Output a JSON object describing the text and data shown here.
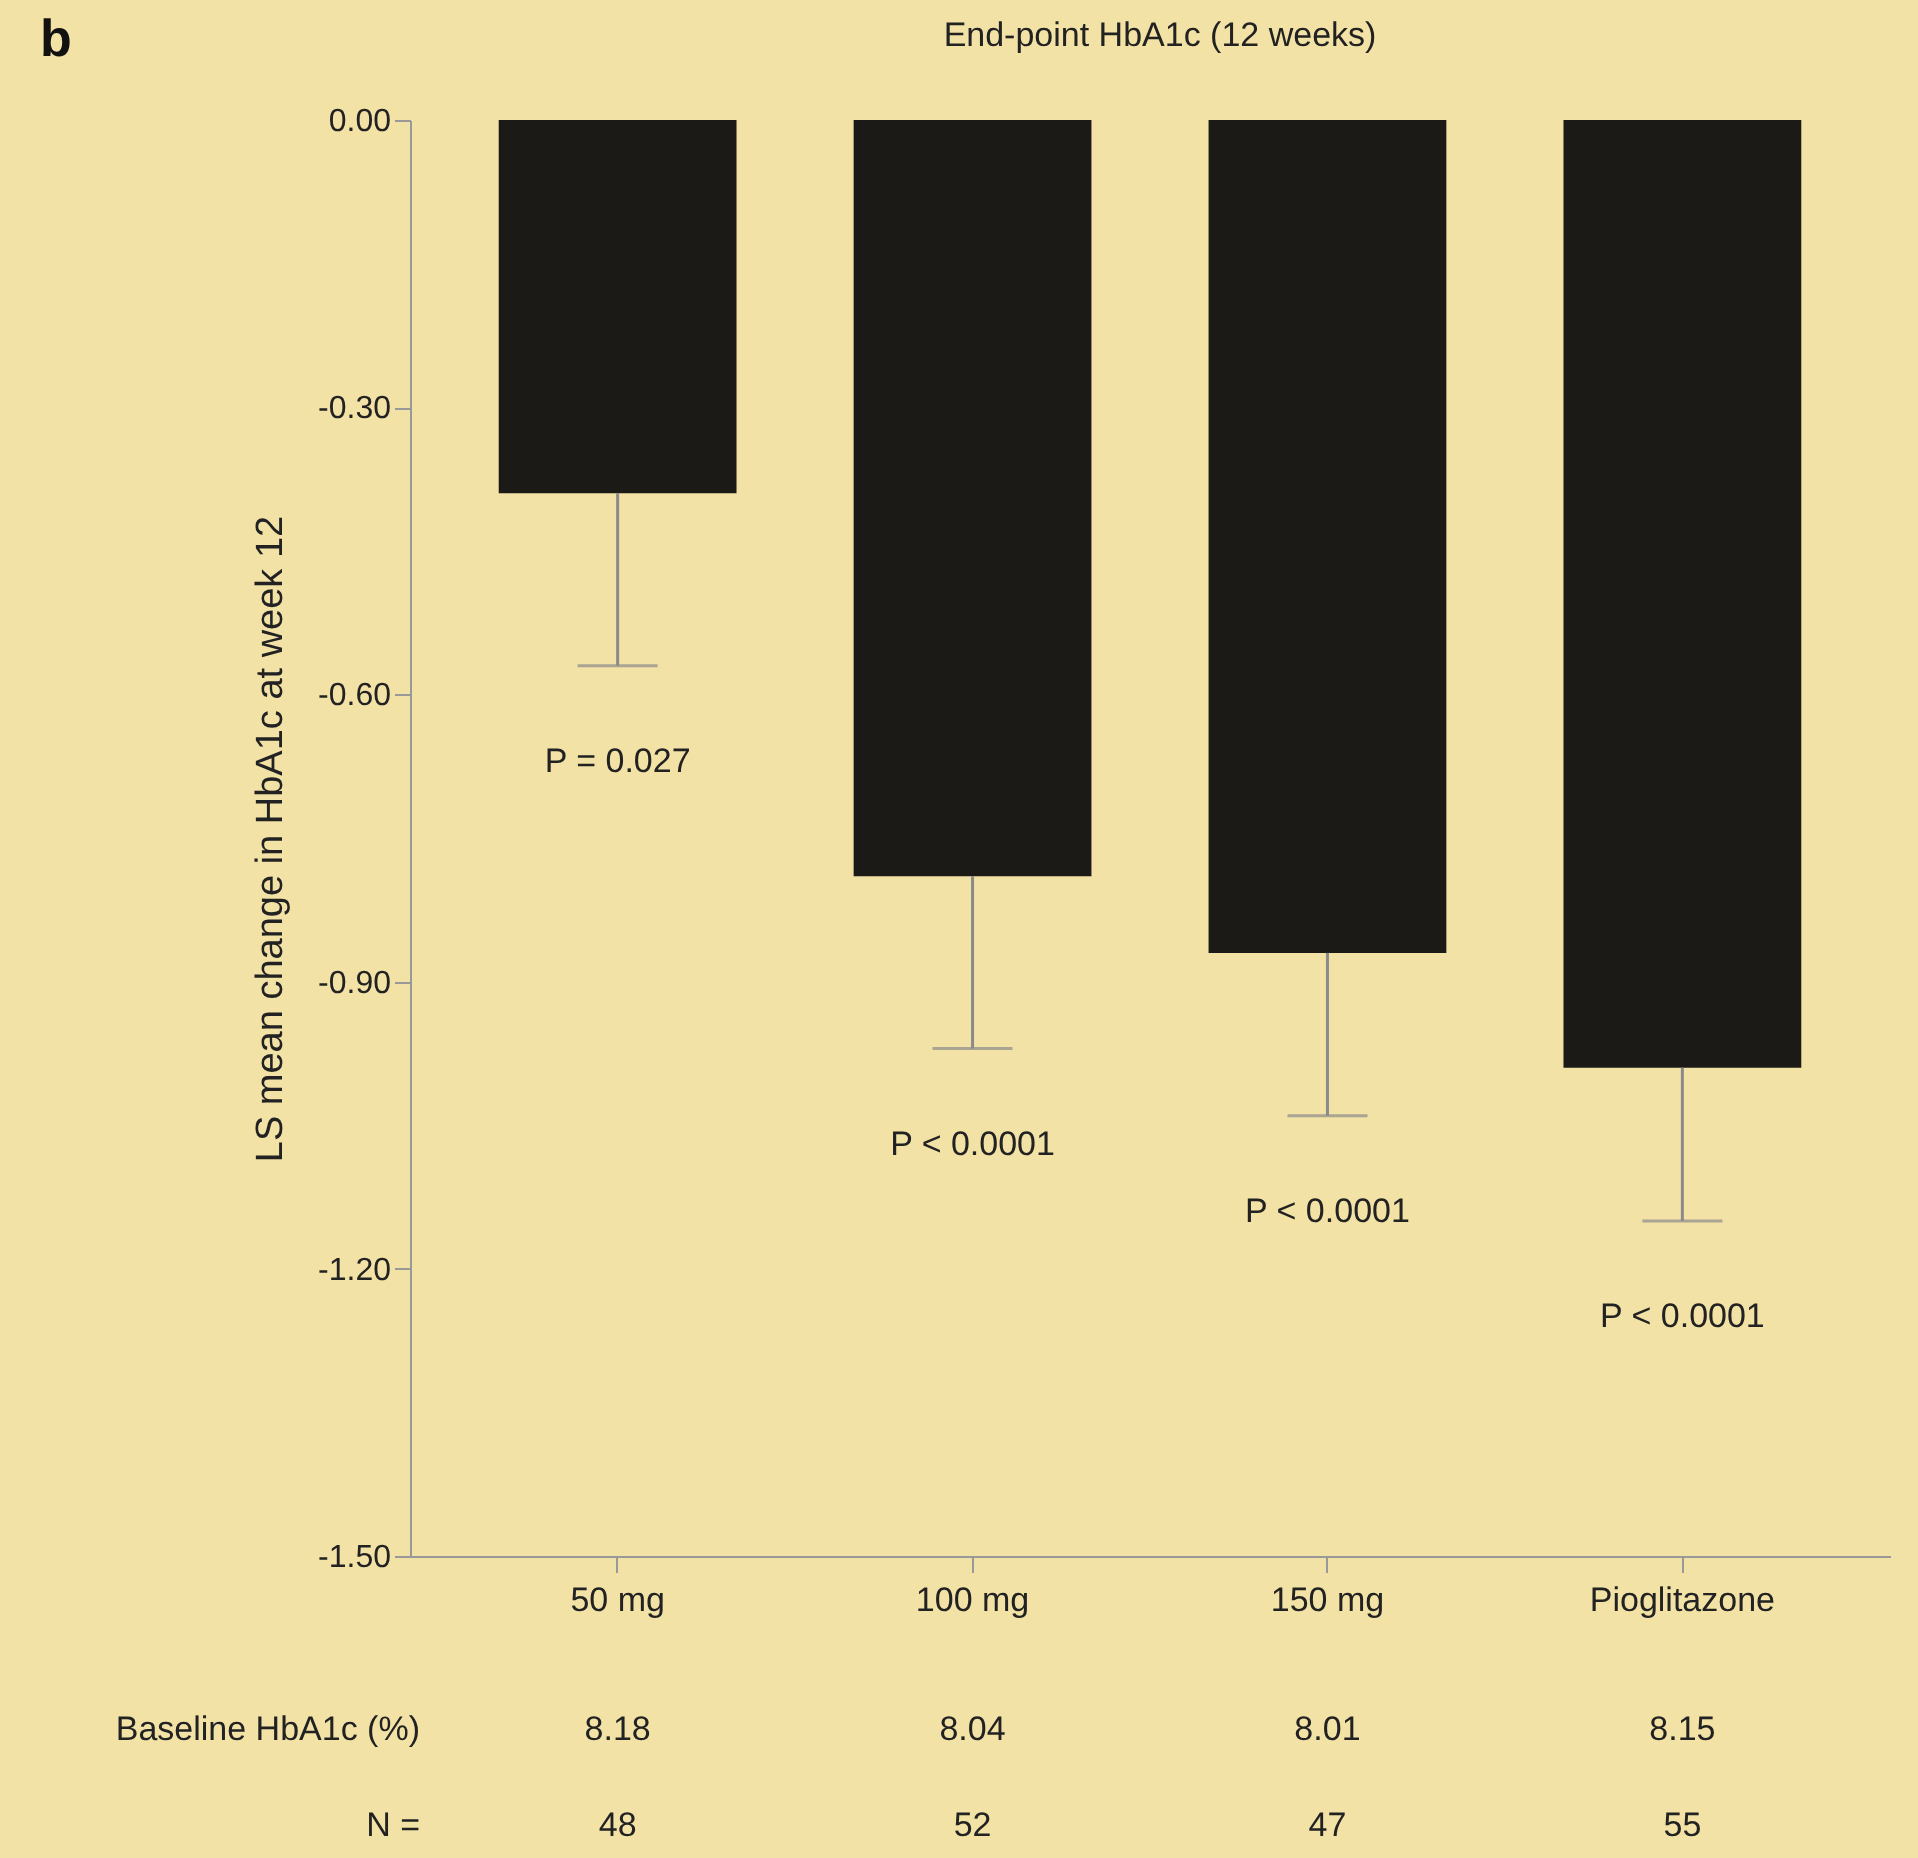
{
  "chart_data": {
    "type": "bar",
    "title": "End-point HbA1c (12 weeks)",
    "ylabel": "LS mean change in HbA1c at week 12",
    "categories": [
      "50 mg",
      "100 mg",
      "150 mg",
      "Pioglitazone"
    ],
    "values": [
      -0.39,
      -0.79,
      -0.87,
      -0.99
    ],
    "errors": [
      [
        -0.57,
        -0.39
      ],
      [
        -0.97,
        -0.79
      ],
      [
        -1.04,
        -0.87
      ],
      [
        -1.15,
        -0.99
      ]
    ],
    "color": "#1c1a17",
    "ylim": [
      -1.5,
      0
    ],
    "yticks": [
      {
        "value": 0,
        "label": "0.00"
      },
      {
        "value": -0.3,
        "label": "-0.30"
      },
      {
        "value": -0.6,
        "label": "-0.60"
      },
      {
        "value": -0.9,
        "label": "-0.90"
      },
      {
        "value": -1.2,
        "label": "-1.20"
      },
      {
        "value": -1.5,
        "label": "-1.50"
      }
    ],
    "grid": false,
    "annotations": [
      "b",
      "P = 0.027",
      "P < 0.0001",
      "P < 0.0001",
      "P < 0.0001",
      "Baseline HbA1c (%)",
      "8.18",
      "8.04",
      "8.01",
      "8.15",
      "N =",
      "48",
      "52",
      "47",
      "55"
    ]
  }
}
